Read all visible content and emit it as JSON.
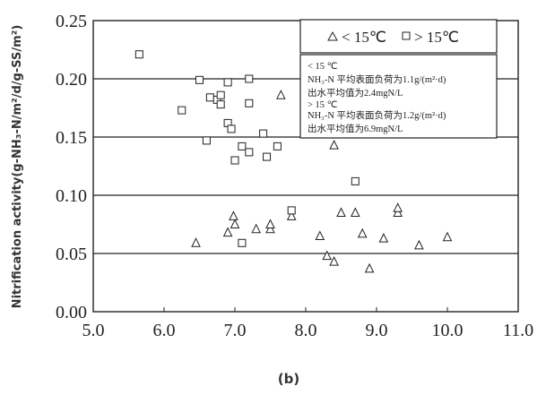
{
  "chart_data": {
    "type": "scatter",
    "ylabel": "Nitrification activity(g-NH₃-N/m²/d/g-SS/m²)",
    "caption": "(b)",
    "xlim": [
      5.0,
      11.0
    ],
    "ylim": [
      0.0,
      0.25
    ],
    "x_ticks": [
      "5.0",
      "6.0",
      "7.0",
      "8.0",
      "9.0",
      "10.0",
      "11.0"
    ],
    "y_ticks": [
      "0.00",
      "0.05",
      "0.10",
      "0.15",
      "0.20",
      "0.25"
    ],
    "grid": "horizontal",
    "legend": {
      "position": "top-right",
      "entries": [
        "< 15℃",
        "> 15℃"
      ],
      "notes": [
        "< 15 ℃",
        "NH₃-N 平均表面负荷为1.1g/(m²·d)",
        "出水平均值为2.4mgN/L",
        "> 15 ℃",
        "NH₃-N 平均表面负荷为1.2g/(m²·d)",
        "出水平均值为6.9mgN/L"
      ]
    },
    "series": [
      {
        "name": "< 15℃",
        "marker": "triangle",
        "points": [
          [
            6.45,
            0.059
          ],
          [
            6.9,
            0.068
          ],
          [
            6.98,
            0.082
          ],
          [
            7.0,
            0.075
          ],
          [
            7.3,
            0.071
          ],
          [
            7.5,
            0.071
          ],
          [
            7.5,
            0.075
          ],
          [
            7.65,
            0.186
          ],
          [
            7.8,
            0.082
          ],
          [
            8.2,
            0.065
          ],
          [
            8.3,
            0.048
          ],
          [
            8.4,
            0.043
          ],
          [
            8.4,
            0.143
          ],
          [
            8.5,
            0.085
          ],
          [
            8.7,
            0.085
          ],
          [
            8.8,
            0.067
          ],
          [
            8.9,
            0.037
          ],
          [
            9.1,
            0.063
          ],
          [
            9.3,
            0.085
          ],
          [
            9.3,
            0.089
          ],
          [
            9.6,
            0.057
          ],
          [
            10.0,
            0.064
          ]
        ]
      },
      {
        "name": "> 15℃",
        "marker": "square",
        "points": [
          [
            5.65,
            0.221
          ],
          [
            6.25,
            0.173
          ],
          [
            6.5,
            0.199
          ],
          [
            6.6,
            0.147
          ],
          [
            6.65,
            0.184
          ],
          [
            6.75,
            0.182
          ],
          [
            6.8,
            0.186
          ],
          [
            6.8,
            0.178
          ],
          [
            6.9,
            0.197
          ],
          [
            6.9,
            0.162
          ],
          [
            6.95,
            0.157
          ],
          [
            7.0,
            0.13
          ],
          [
            7.1,
            0.142
          ],
          [
            7.1,
            0.059
          ],
          [
            7.2,
            0.179
          ],
          [
            7.2,
            0.137
          ],
          [
            7.2,
            0.2
          ],
          [
            7.4,
            0.153
          ],
          [
            7.45,
            0.133
          ],
          [
            7.6,
            0.142
          ],
          [
            7.8,
            0.087
          ],
          [
            8.7,
            0.112
          ]
        ]
      }
    ]
  }
}
